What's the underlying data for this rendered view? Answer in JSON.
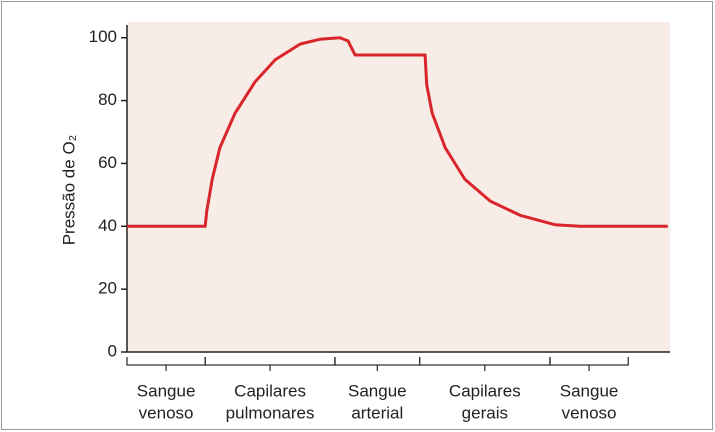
{
  "chart_data": {
    "type": "line",
    "ylabel": "Pressão de O₂",
    "x": [
      0,
      14.4,
      14.7,
      15.7,
      17.1,
      19.9,
      23.6,
      27.3,
      31.9,
      35.5,
      39.2,
      40.7,
      42.0,
      54.9,
      55.2,
      56.2,
      58.6,
      62.2,
      66.9,
      72.4,
      78.8,
      83.4,
      99.6
    ],
    "values": [
      40,
      40,
      45,
      55,
      65,
      76,
      86,
      93,
      98,
      99.5,
      100,
      99,
      94.5,
      94.5,
      85,
      76,
      65,
      55,
      48,
      43.5,
      40.5,
      40,
      40
    ],
    "color": "#d9262b",
    "xlim": [
      0,
      100
    ],
    "ylim": [
      0,
      105
    ],
    "yticks": [
      0,
      20,
      40,
      60,
      80,
      100
    ],
    "background": "#f8ece7",
    "regions": [
      {
        "label": [
          "Sangue",
          "venoso"
        ],
        "from": 0,
        "to": 14.4
      },
      {
        "label": [
          "Capilares",
          "pulmonares"
        ],
        "from": 14.4,
        "to": 38.3
      },
      {
        "label": [
          "Sangue",
          "arterial"
        ],
        "from": 38.3,
        "to": 53.9
      },
      {
        "label": [
          "Capilares",
          "gerais"
        ],
        "from": 53.9,
        "to": 77.9
      },
      {
        "label": [
          "Sangue",
          "venoso"
        ],
        "from": 77.9,
        "to": 92.3
      }
    ]
  }
}
